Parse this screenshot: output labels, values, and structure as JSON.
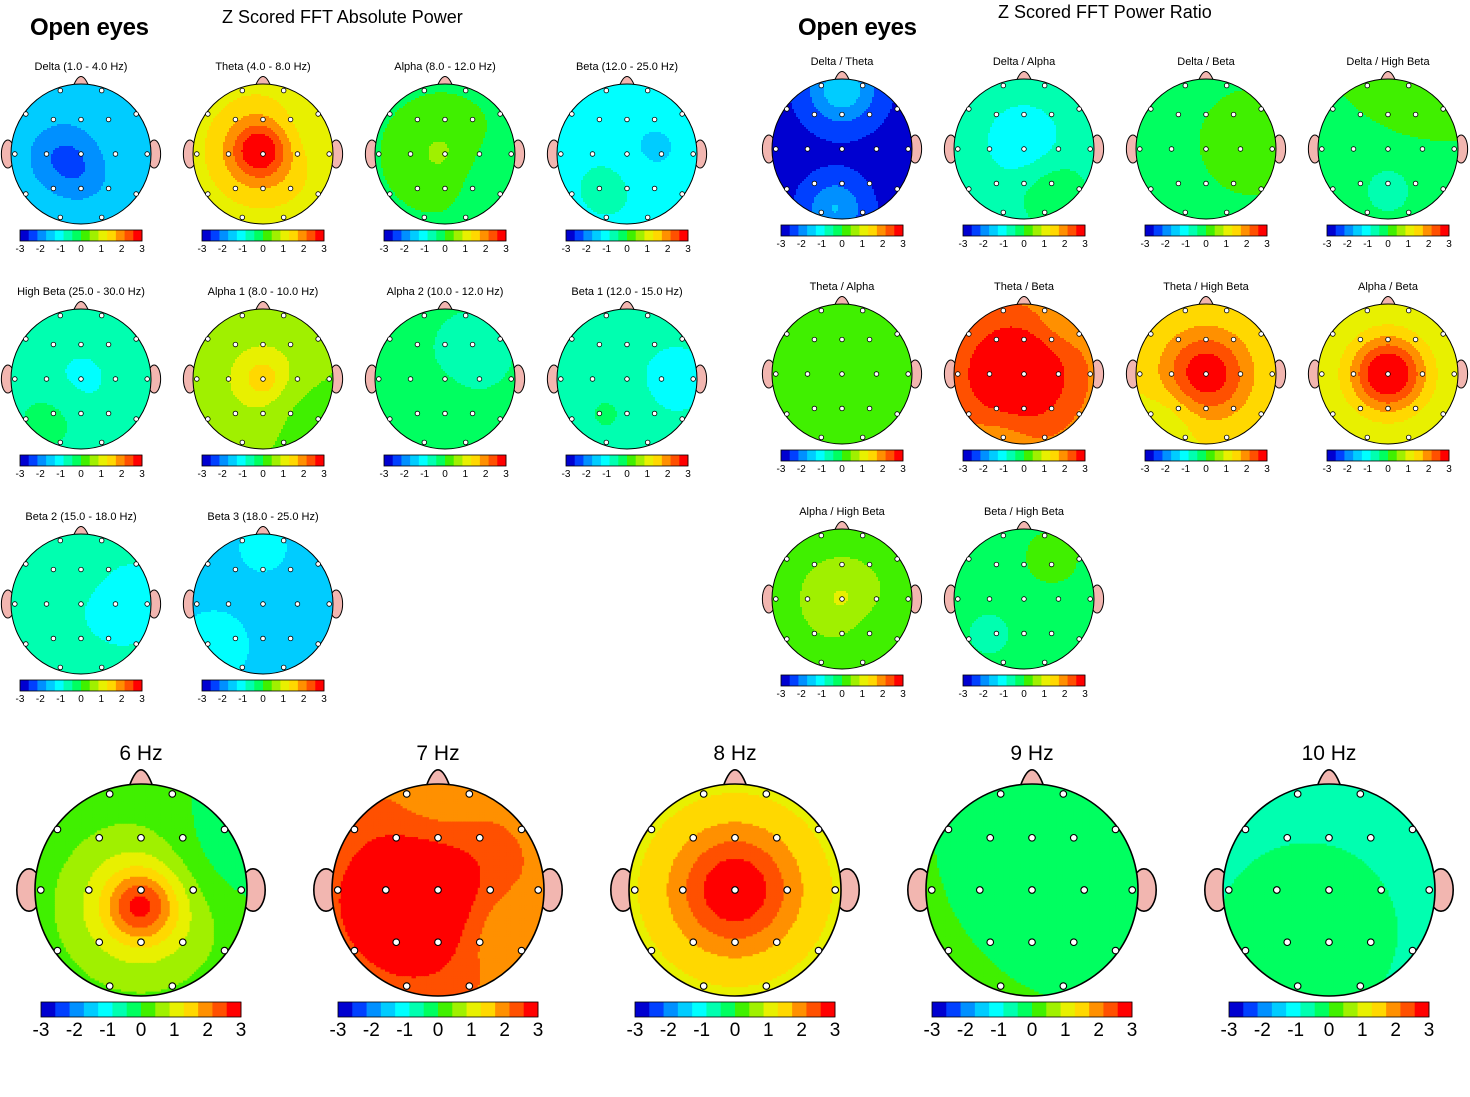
{
  "colors": {
    "scale": [
      "#0000d0",
      "#0040ff",
      "#0090ff",
      "#00ccff",
      "#00ffff",
      "#00ffb0",
      "#00ff60",
      "#40f000",
      "#a0f000",
      "#e8f000",
      "#ffd800",
      "#ff9000",
      "#ff5000",
      "#ff0000"
    ],
    "head_outline": "#000000",
    "nose_ear": "#f2b6b0"
  },
  "scale_ticks": [
    "-3",
    "-2",
    "-1",
    "0",
    "1",
    "2",
    "3"
  ],
  "scale_range": [
    -3,
    3
  ],
  "sections": {
    "absolute": {
      "condition": "Open eyes",
      "title": "Z Scored FFT Absolute Power"
    },
    "ratio": {
      "condition": "Open eyes",
      "title": "Z Scored FFT Power Ratio"
    }
  },
  "absolute_maps": [
    {
      "label": "Delta (1.0 - 4.0 Hz)",
      "base": -1.3,
      "blobs": [
        [
          -0.25,
          0.05,
          0.38,
          -0.9
        ],
        [
          0.1,
          0.4,
          0.3,
          -0.3
        ]
      ]
    },
    {
      "label": "Theta (4.0 - 8.0 Hz)",
      "base": 0.9,
      "blobs": [
        [
          0.0,
          -0.05,
          0.55,
          1.2
        ],
        [
          -0.05,
          -0.05,
          0.25,
          1.1
        ],
        [
          0.6,
          -0.3,
          0.4,
          -0.4
        ]
      ]
    },
    {
      "label": "Alpha (8.0 - 12.0 Hz)",
      "base": -0.05,
      "blobs": [
        [
          -0.05,
          0.0,
          0.4,
          0.55
        ],
        [
          0.6,
          0.3,
          0.35,
          -0.3
        ]
      ]
    },
    {
      "label": "Beta (12.0 - 25.0 Hz)",
      "base": -1.0,
      "blobs": [
        [
          0.4,
          -0.1,
          0.35,
          -0.35
        ],
        [
          -0.3,
          0.5,
          0.3,
          0.3
        ]
      ]
    },
    {
      "label": "High Beta (25.0 - 30.0 Hz)",
      "base": -0.5,
      "blobs": [
        [
          0.0,
          0.0,
          0.45,
          -0.45
        ],
        [
          -0.4,
          0.5,
          0.3,
          0.3
        ]
      ]
    },
    {
      "label": "Alpha 1 (8.0 - 10.0 Hz)",
      "base": 0.4,
      "blobs": [
        [
          0.0,
          0.0,
          0.45,
          0.8
        ],
        [
          0.0,
          0.0,
          0.15,
          0.5
        ],
        [
          0.5,
          0.4,
          0.35,
          -0.3
        ]
      ]
    },
    {
      "label": "Alpha 2 (10.0 - 12.0 Hz)",
      "base": -0.35,
      "blobs": [
        [
          0.4,
          -0.4,
          0.35,
          -0.3
        ],
        [
          -0.3,
          0.5,
          0.35,
          0.2
        ]
      ]
    },
    {
      "label": "Beta 1 (12.0 - 15.0 Hz)",
      "base": -0.7,
      "blobs": [
        [
          0.7,
          0.0,
          0.3,
          -0.5
        ],
        [
          -0.3,
          0.5,
          0.35,
          0.3
        ]
      ]
    },
    {
      "label": "Beta 2 (15.0 - 18.0 Hz)",
      "base": -0.8,
      "blobs": [
        [
          0.6,
          0.0,
          0.3,
          -0.4
        ],
        [
          -0.1,
          -0.6,
          0.3,
          0.3
        ]
      ]
    },
    {
      "label": "Beta 3 (18.0 - 25.0 Hz)",
      "base": -1.5,
      "blobs": [
        [
          -0.7,
          0.6,
          0.35,
          0.6
        ],
        [
          0.0,
          -0.8,
          0.3,
          0.4
        ]
      ]
    }
  ],
  "ratio_maps": [
    {
      "label": "Delta / Theta",
      "base": -2.7,
      "blobs": [
        [
          0.0,
          -0.85,
          0.35,
          1.3
        ],
        [
          -0.1,
          0.85,
          0.3,
          1.0
        ]
      ]
    },
    {
      "label": "Delta / Alpha",
      "base": -0.6,
      "blobs": [
        [
          0.0,
          -0.1,
          0.4,
          -0.6
        ],
        [
          0.4,
          0.6,
          0.35,
          0.5
        ]
      ]
    },
    {
      "label": "Delta / Beta",
      "base": 0.0,
      "blobs": [
        [
          0.3,
          0.0,
          0.15,
          0.3
        ],
        [
          -0.8,
          0.3,
          0.3,
          -0.3
        ]
      ]
    },
    {
      "label": "Delta / High Beta",
      "base": 0.0,
      "blobs": [
        [
          0.0,
          0.6,
          0.35,
          -0.6
        ],
        [
          0.4,
          -0.7,
          0.25,
          0.3
        ]
      ]
    },
    {
      "label": "Theta / Alpha",
      "base": 0.0,
      "blobs": []
    },
    {
      "label": "Theta / Beta",
      "base": 1.8,
      "blobs": [
        [
          -0.1,
          0.0,
          0.6,
          1.5
        ],
        [
          0.5,
          -0.7,
          0.3,
          -0.3
        ],
        [
          -0.3,
          0.85,
          0.3,
          -0.3
        ]
      ]
    },
    {
      "label": "Theta / High Beta",
      "base": 1.2,
      "blobs": [
        [
          0.0,
          0.0,
          0.45,
          1.7
        ],
        [
          -0.5,
          0.6,
          0.3,
          -0.4
        ]
      ]
    },
    {
      "label": "Alpha / Beta",
      "base": 0.7,
      "blobs": [
        [
          0.0,
          0.0,
          0.35,
          1.8
        ],
        [
          0.0,
          0.0,
          0.6,
          0.7
        ]
      ]
    },
    {
      "label": "Alpha / High Beta",
      "base": 0.2,
      "blobs": [
        [
          0.0,
          0.0,
          0.4,
          0.7
        ],
        [
          0.5,
          0.5,
          0.3,
          -0.3
        ]
      ]
    },
    {
      "label": "Beta / High Beta",
      "base": -0.1,
      "blobs": [
        [
          -0.5,
          0.5,
          0.3,
          -0.5
        ],
        [
          0.4,
          -0.6,
          0.25,
          0.3
        ]
      ]
    }
  ],
  "hz_maps": [
    {
      "label": "6 Hz",
      "base": 0.0,
      "blobs": [
        [
          0.0,
          0.15,
          0.55,
          1.3
        ],
        [
          0.0,
          0.15,
          0.22,
          1.5
        ],
        [
          0.7,
          -0.3,
          0.4,
          -0.5
        ]
      ]
    },
    {
      "label": "7 Hz",
      "base": 1.9,
      "blobs": [
        [
          -0.2,
          0.1,
          0.6,
          1.4
        ],
        [
          0.6,
          0.4,
          0.3,
          -0.6
        ],
        [
          0.0,
          -0.8,
          0.3,
          -0.4
        ]
      ]
    },
    {
      "label": "8 Hz",
      "base": 1.0,
      "blobs": [
        [
          0.0,
          0.0,
          0.5,
          1.5
        ],
        [
          0.0,
          0.0,
          0.3,
          0.5
        ]
      ]
    },
    {
      "label": "9 Hz",
      "base": 0.0,
      "blobs": [
        [
          0.75,
          -0.55,
          0.2,
          -0.3
        ]
      ]
    },
    {
      "label": "10 Hz",
      "base": -0.5,
      "blobs": [
        [
          -0.2,
          0.4,
          0.5,
          0.3
        ]
      ]
    }
  ]
}
